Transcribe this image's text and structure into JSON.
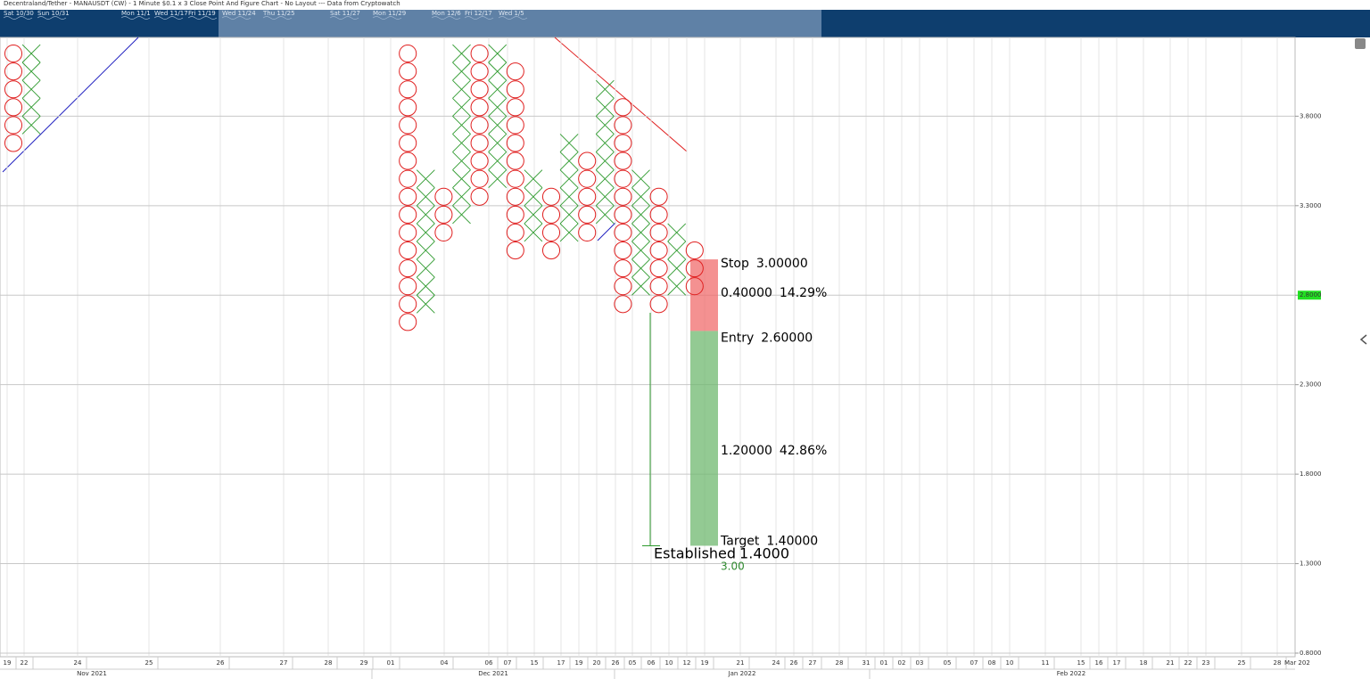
{
  "chart_data": {
    "type": "pnf",
    "title": "Decentraland/Tether - MANAUSDT (CW) - 1 Minute $0.1 x 3 Close Point And Figure Chart - No Layout --- Data from Cryptowatch",
    "navigator_labels": [
      "Sat 10/30",
      "Sun 10/31",
      "Mon 11/1",
      "Wed 11/17",
      "Fri 11/19",
      "Wed 11/24",
      "Thu 11/25",
      "Sat 11/27",
      "Mon 11/29",
      "Mon 12/6",
      "Fri 12/17",
      "Wed 1/5"
    ],
    "box_size": 0.1,
    "x_color": "#2e9a2e",
    "o_color": "#e02020",
    "columns": [
      {
        "kind": "O",
        "high": 4.2,
        "low": 3.6
      },
      {
        "kind": "X",
        "high": 4.2,
        "low": 3.7
      },
      {
        "kind": "O",
        "high": 4.2,
        "low": 2.6
      },
      {
        "kind": "X",
        "high": 3.5,
        "low": 2.7
      },
      {
        "kind": "O",
        "high": 3.4,
        "low": 3.1
      },
      {
        "kind": "X",
        "high": 4.2,
        "low": 3.2
      },
      {
        "kind": "O",
        "high": 4.2,
        "low": 3.3
      },
      {
        "kind": "X",
        "high": 4.2,
        "low": 3.4
      },
      {
        "kind": "O",
        "high": 4.1,
        "low": 3.0
      },
      {
        "kind": "X",
        "high": 3.5,
        "low": 3.1
      },
      {
        "kind": "O",
        "high": 3.4,
        "low": 3.0
      },
      {
        "kind": "X",
        "high": 3.7,
        "low": 3.1
      },
      {
        "kind": "O",
        "high": 3.6,
        "low": 3.1
      },
      {
        "kind": "X",
        "high": 4.0,
        "low": 3.2
      },
      {
        "kind": "O",
        "high": 3.9,
        "low": 2.7
      },
      {
        "kind": "X",
        "high": 3.5,
        "low": 2.8
      },
      {
        "kind": "O",
        "high": 3.4,
        "low": 2.7
      },
      {
        "kind": "X",
        "high": 3.2,
        "low": 2.8
      },
      {
        "kind": "O",
        "high": 3.1,
        "low": 2.8
      }
    ],
    "ylim": [
      0.78,
      4.24
    ],
    "yticks": [
      {
        "value": 0.8,
        "label": "0.8000"
      },
      {
        "value": 1.3,
        "label": "1.3000"
      },
      {
        "value": 1.8,
        "label": "1.8000"
      },
      {
        "value": 2.3,
        "label": "2.3000"
      },
      {
        "value": 2.8,
        "label": "2.8000"
      },
      {
        "value": 3.3,
        "label": "3.3000"
      },
      {
        "value": 3.8,
        "label": "3.8000"
      }
    ],
    "last_price": {
      "value": 2.8,
      "label": "2.8000"
    },
    "categories": [
      "19",
      "22",
      "24",
      "25",
      "26",
      "27",
      "28",
      "29",
      "01",
      "04",
      "06",
      "07",
      "15",
      "17",
      "19",
      "20",
      "26",
      "05",
      "06",
      "10",
      "12",
      "19",
      "21",
      "24",
      "26",
      "27",
      "28",
      "31",
      "01",
      "02",
      "03",
      "05",
      "07",
      "08",
      "10",
      "11",
      "15",
      "16",
      "17",
      "18",
      "21",
      "22",
      "23",
      "25",
      "28",
      "Mar 202"
    ],
    "months": [
      "Nov 2021",
      "Dec 2021",
      "Jan 2022",
      "Feb 2022"
    ],
    "levels": [
      {
        "name": "Stop",
        "value": 3.0,
        "label": "3.00000"
      },
      {
        "name": "Entry",
        "value": 2.6,
        "label": "2.60000"
      },
      {
        "name": "Target",
        "value": 1.4,
        "label": "1.40000"
      }
    ],
    "risk": {
      "value": 0.4,
      "label": "0.40000",
      "percent": "14.29%"
    },
    "reward": {
      "value": 1.2,
      "label": "1.20000",
      "percent": "42.86%"
    },
    "established": {
      "text": "Established",
      "value": 1.4,
      "label": "1.4000"
    },
    "reward_risk_ratio": {
      "value": 3.0,
      "label": "3.00"
    }
  }
}
